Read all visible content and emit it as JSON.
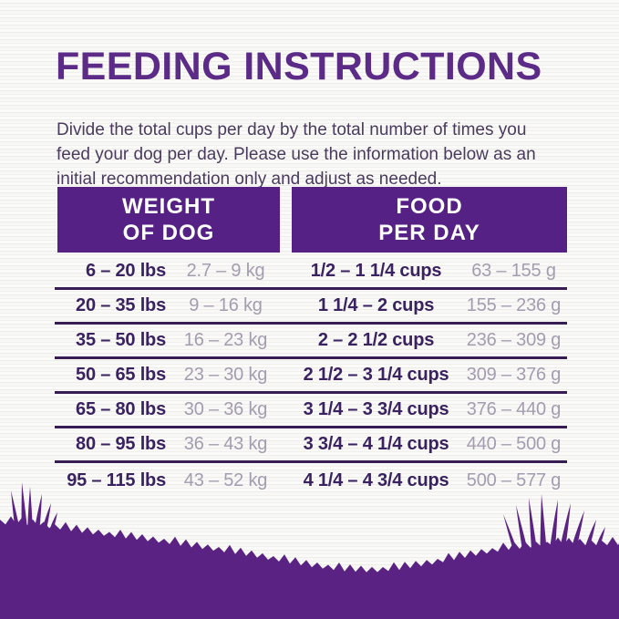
{
  "title": "FEEDING INSTRUCTIONS",
  "intro": {
    "lines": [
      "Divide the total cups per day by the total number of times you",
      "feed your dog per day. Please use the information below as an",
      "initial recommendation only and adjust as needed."
    ]
  },
  "table": {
    "headers": [
      {
        "line1": "WEIGHT",
        "line2": "OF DOG"
      },
      {
        "line1": "FOOD",
        "line2": "PER DAY"
      }
    ],
    "rows": [
      {
        "lbs": "6 – 20 lbs",
        "kg": "2.7 – 9 kg",
        "cups": "1/2 – 1 1/4 cups",
        "grams": "63 – 155 g"
      },
      {
        "lbs": "20 – 35 lbs",
        "kg": "9 – 16 kg",
        "cups": "1 1/4 – 2 cups",
        "grams": "155 – 236 g"
      },
      {
        "lbs": "35 – 50 lbs",
        "kg": "16 – 23 kg",
        "cups": "2 – 2 1/2 cups",
        "grams": "236 – 309 g"
      },
      {
        "lbs": "50 – 65 lbs",
        "kg": "23 – 30 kg",
        "cups": "2 1/2 – 3 1/4 cups",
        "grams": "309 – 376 g"
      },
      {
        "lbs": "65 – 80 lbs",
        "kg": "30 – 36 kg",
        "cups": "3 1/4 – 3 3/4 cups",
        "grams": "376 – 440 g"
      },
      {
        "lbs": "80 – 95 lbs",
        "kg": "36 – 43 kg",
        "cups": "3 3/4 – 4 1/4 cups",
        "grams": "440 – 500 g"
      },
      {
        "lbs": "95 – 115 lbs",
        "kg": "43 – 52 kg",
        "cups": "4 1/4 – 4 3/4 cups",
        "grams": "500 – 577 g"
      }
    ]
  },
  "colors": {
    "title_purple": "#5b2b87",
    "header_bg": "#552184",
    "grass_purple": "#5a2383",
    "dark_text": "#3a2260",
    "light_text": "#a49cb0",
    "body_text": "#4a3a5e",
    "divider": "#371d54",
    "background": "#f5f4f1"
  }
}
